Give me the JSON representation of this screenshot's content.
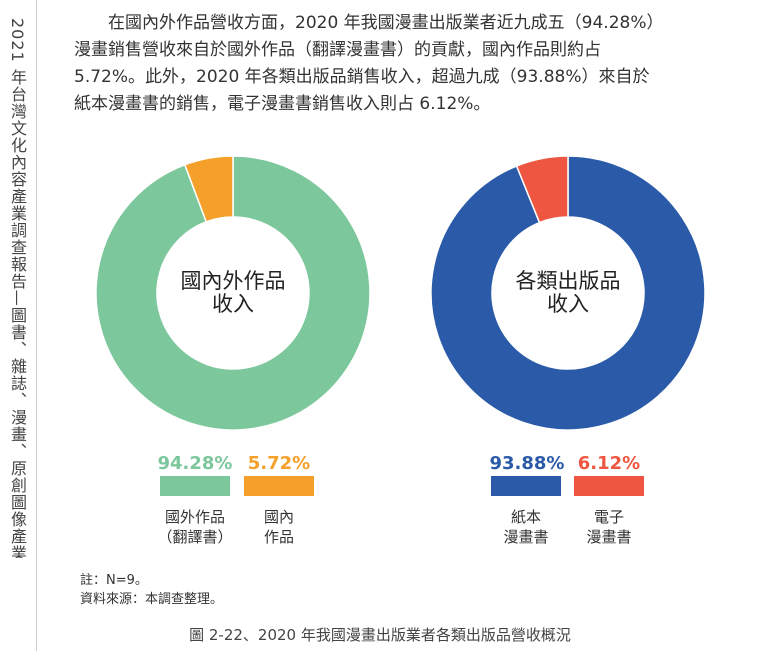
{
  "side_title": "2021 年台灣文化內容產業調查報告—圖書、雜誌、漫畫、原創圖像產業",
  "paragraph": {
    "line1": "在國內外作品營收方面，2020 年我國漫畫出版業者近九成五（94.28%）",
    "line2": "漫畫銷售營收來自於國外作品（翻譯漫畫書）的貢獻，國內作品則約占",
    "line3": "5.72%。此外，2020 年各類出版品銷售收入，超過九成（93.88%）來自於",
    "line4": "紙本漫畫書的銷售，電子漫畫書銷售收入則占 6.12%。"
  },
  "chart_data": [
    {
      "type": "pie",
      "donut": true,
      "center_label": [
        "國內外作品",
        "收入"
      ],
      "slices": [
        {
          "label_lines": [
            "國外作品",
            "（翻譯書）"
          ],
          "value": 94.28,
          "display": "94.28%",
          "color": "#7cc79b"
        },
        {
          "label_lines": [
            "國內",
            "作品"
          ],
          "value": 5.72,
          "display": "5.72%",
          "color": "#f5a02a"
        }
      ]
    },
    {
      "type": "pie",
      "donut": true,
      "center_label": [
        "各類出版品",
        "收入"
      ],
      "slices": [
        {
          "label_lines": [
            "紙本",
            "漫畫書"
          ],
          "value": 93.88,
          "display": "93.88%",
          "color": "#2b5ba8"
        },
        {
          "label_lines": [
            "電子",
            "漫畫書"
          ],
          "value": 6.12,
          "display": "6.12%",
          "color": "#ee5641"
        }
      ]
    }
  ],
  "notes": {
    "note": "註：N=9。",
    "source": "資料來源：本調查整理。"
  },
  "caption": "圖 2-22、2020 年我國漫畫出版業者各類出版品營收概況"
}
